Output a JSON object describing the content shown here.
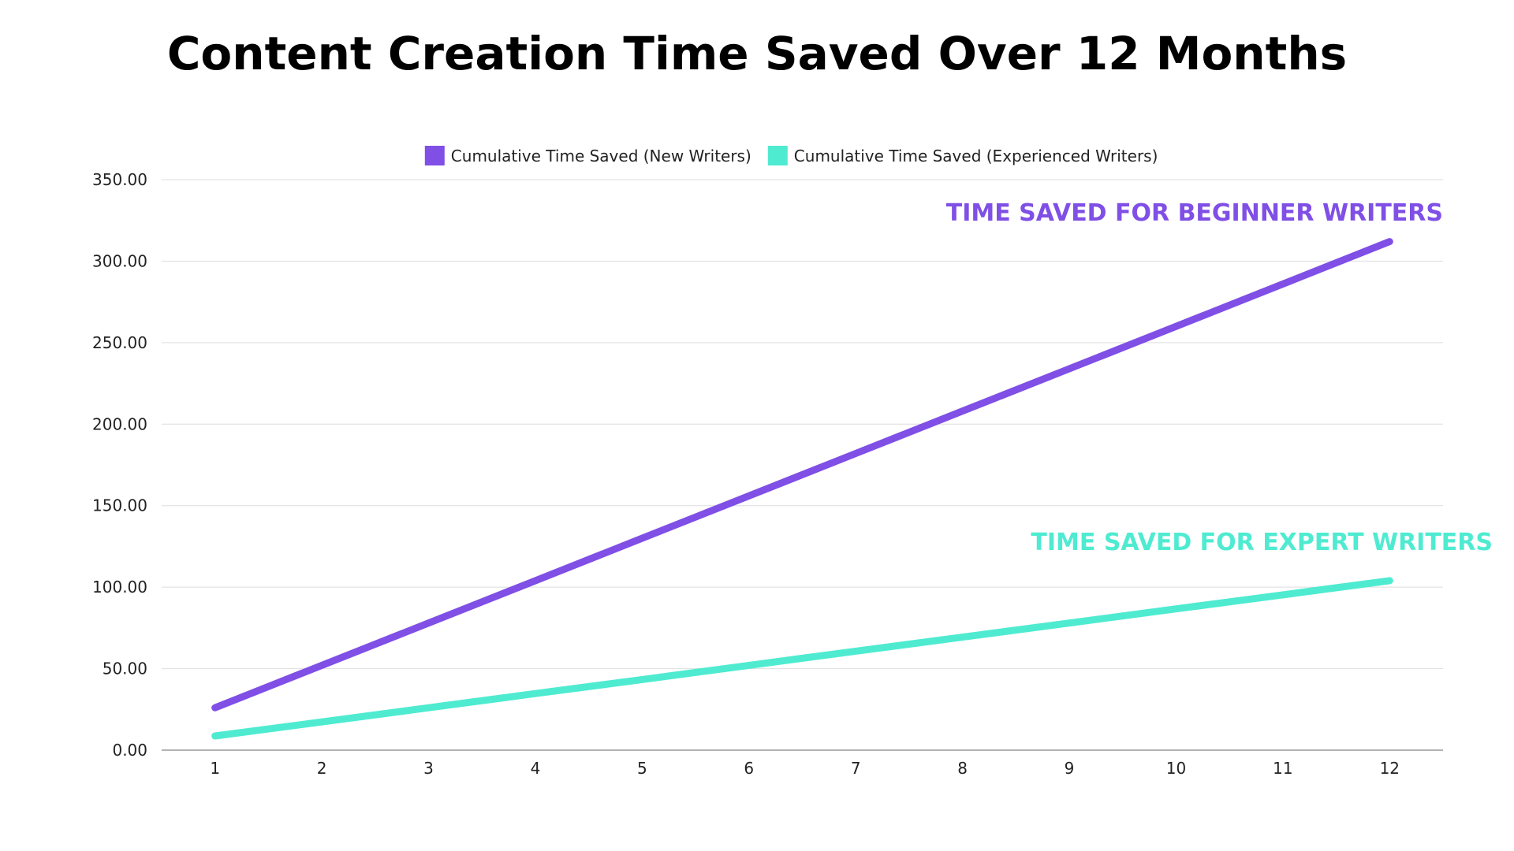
{
  "chart_data": {
    "type": "line",
    "title": "Content Creation Time Saved Over 12 Months",
    "x": [
      1,
      2,
      3,
      4,
      5,
      6,
      7,
      8,
      9,
      10,
      11,
      12
    ],
    "series": [
      {
        "name": "Cumulative Time Saved (New Writers)",
        "color": "#7F4FE6",
        "values": [
          26,
          52,
          78,
          104,
          130,
          156,
          182,
          208,
          234,
          260,
          286,
          312
        ]
      },
      {
        "name": "Cumulative Time Saved (Experienced Writers)",
        "color": "#4FEBD1",
        "values": [
          8.7,
          17.3,
          26,
          34.7,
          43.3,
          52,
          60.7,
          69.3,
          78,
          86.7,
          95.3,
          104
        ]
      }
    ],
    "ylim": [
      0,
      350
    ],
    "yticks": [
      "0.00",
      "50.00",
      "100.00",
      "150.00",
      "200.00",
      "250.00",
      "300.00",
      "350.00"
    ],
    "grid": true,
    "legend": "top-center",
    "annotations": [
      {
        "text": "TIME SAVED FOR BEGINNER WRITERS",
        "series": 0,
        "color": "#7F4FE6"
      },
      {
        "text": "TIME SAVED FOR EXPERT WRITERS",
        "series": 1,
        "color": "#4FEBD1"
      }
    ],
    "xlabel": "",
    "ylabel": ""
  }
}
